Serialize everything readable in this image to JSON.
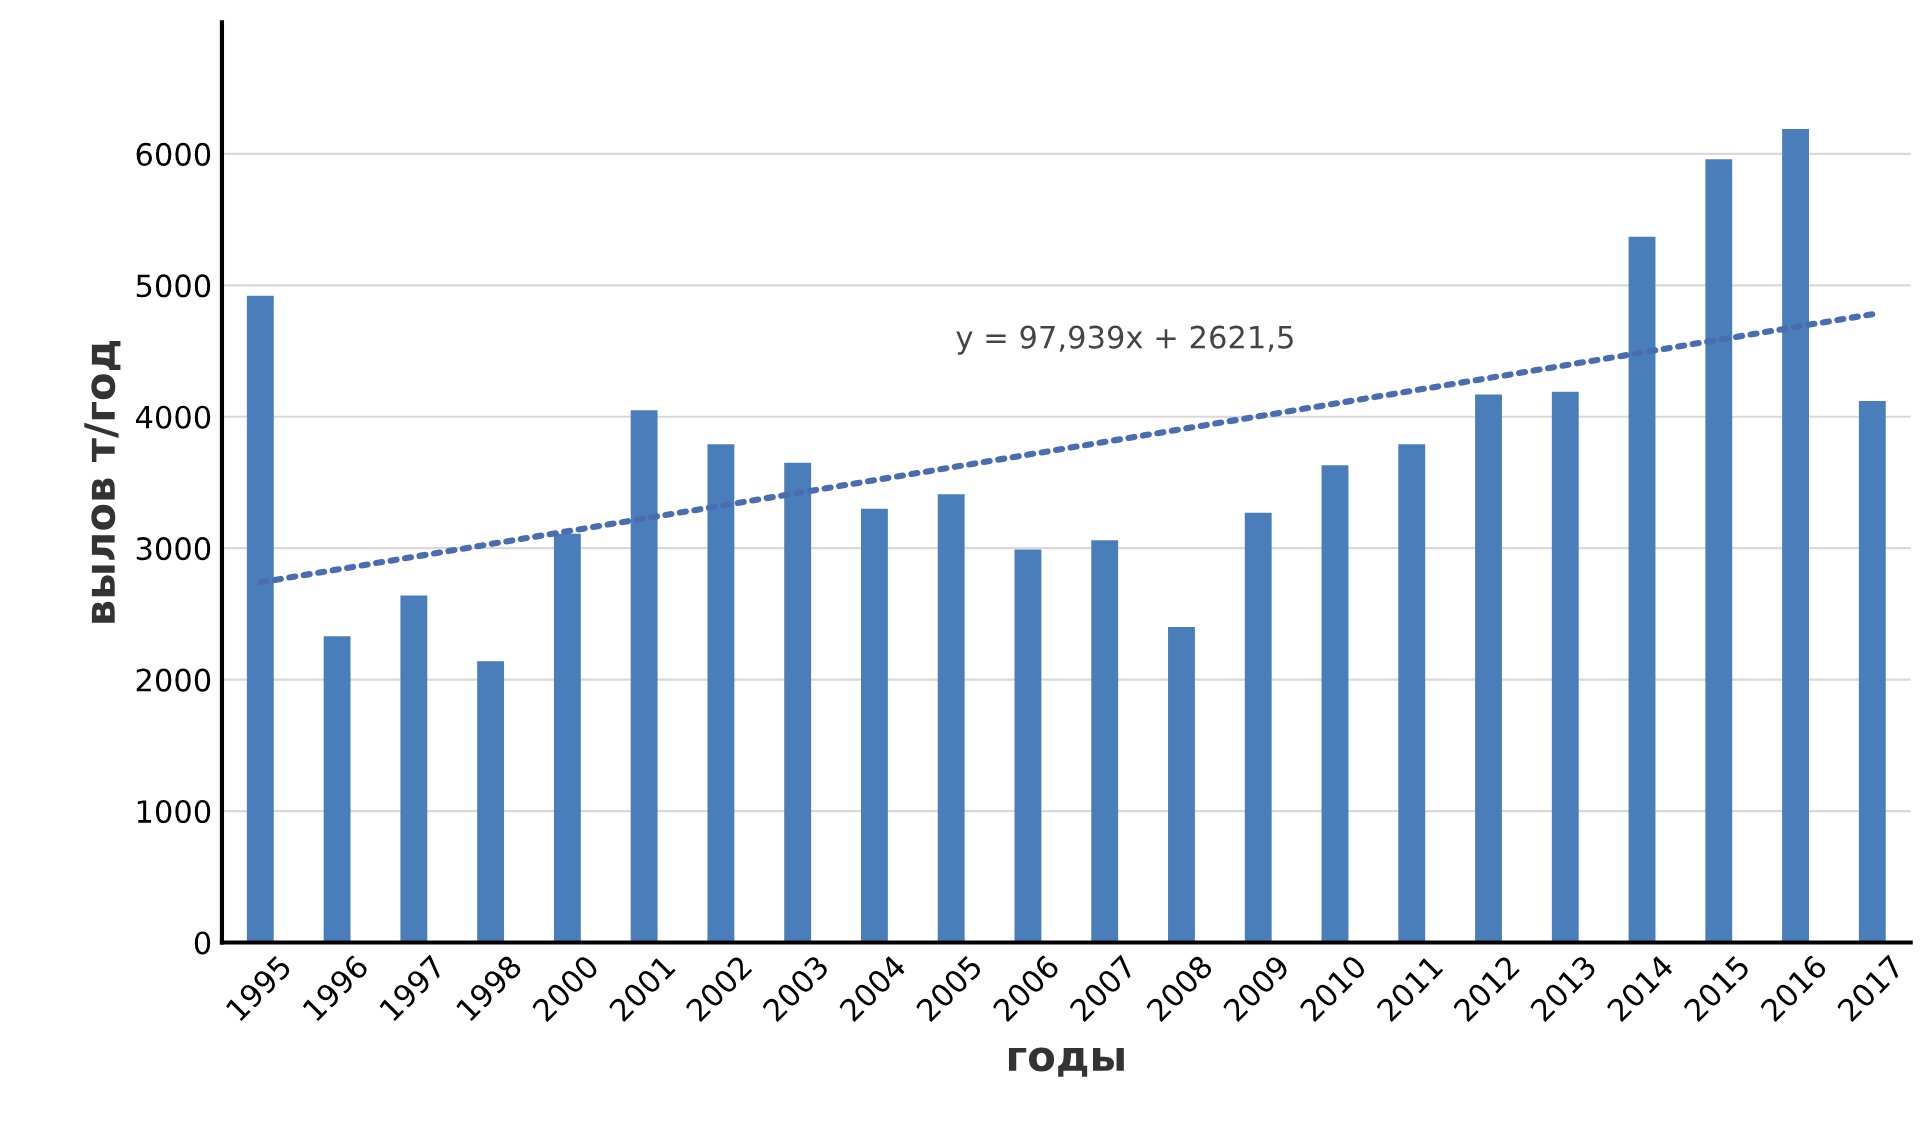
{
  "chart_data": {
    "type": "bar",
    "xlabel": "годы",
    "ylabel": "вылов т/год",
    "categories": [
      "1995",
      "1996",
      "1997",
      "1998",
      "2000",
      "2001",
      "2002",
      "2003",
      "2004",
      "2005",
      "2006",
      "2007",
      "2008",
      "2009",
      "2010",
      "2011",
      "2012",
      "2013",
      "2014",
      "2015",
      "2016",
      "2017"
    ],
    "series": [
      {
        "color": "#4a7ebb",
        "values": [
          4920,
          2330,
          2640,
          2140,
          3110,
          4050,
          3790,
          3650,
          3300,
          3410,
          2990,
          3060,
          2400,
          3270,
          3630,
          3790,
          4170,
          4190,
          5370,
          5960,
          6190,
          4120
        ]
      },
      {
        "type": "line",
        "color": "#4a6cb0",
        "line_style": "dotted",
        "values": [
          2740,
          null,
          null,
          null,
          null,
          null,
          null,
          null,
          null,
          null,
          null,
          null,
          null,
          null,
          null,
          null,
          null,
          null,
          null,
          null,
          null,
          4780
        ]
      }
    ],
    "annotations": [
      "y = 97,939x + 2621,5"
    ],
    "ylim": [
      0,
      7000
    ],
    "yticks": [
      0,
      1000,
      2000,
      3000,
      4000,
      5000,
      6000
    ],
    "grid": "y"
  }
}
